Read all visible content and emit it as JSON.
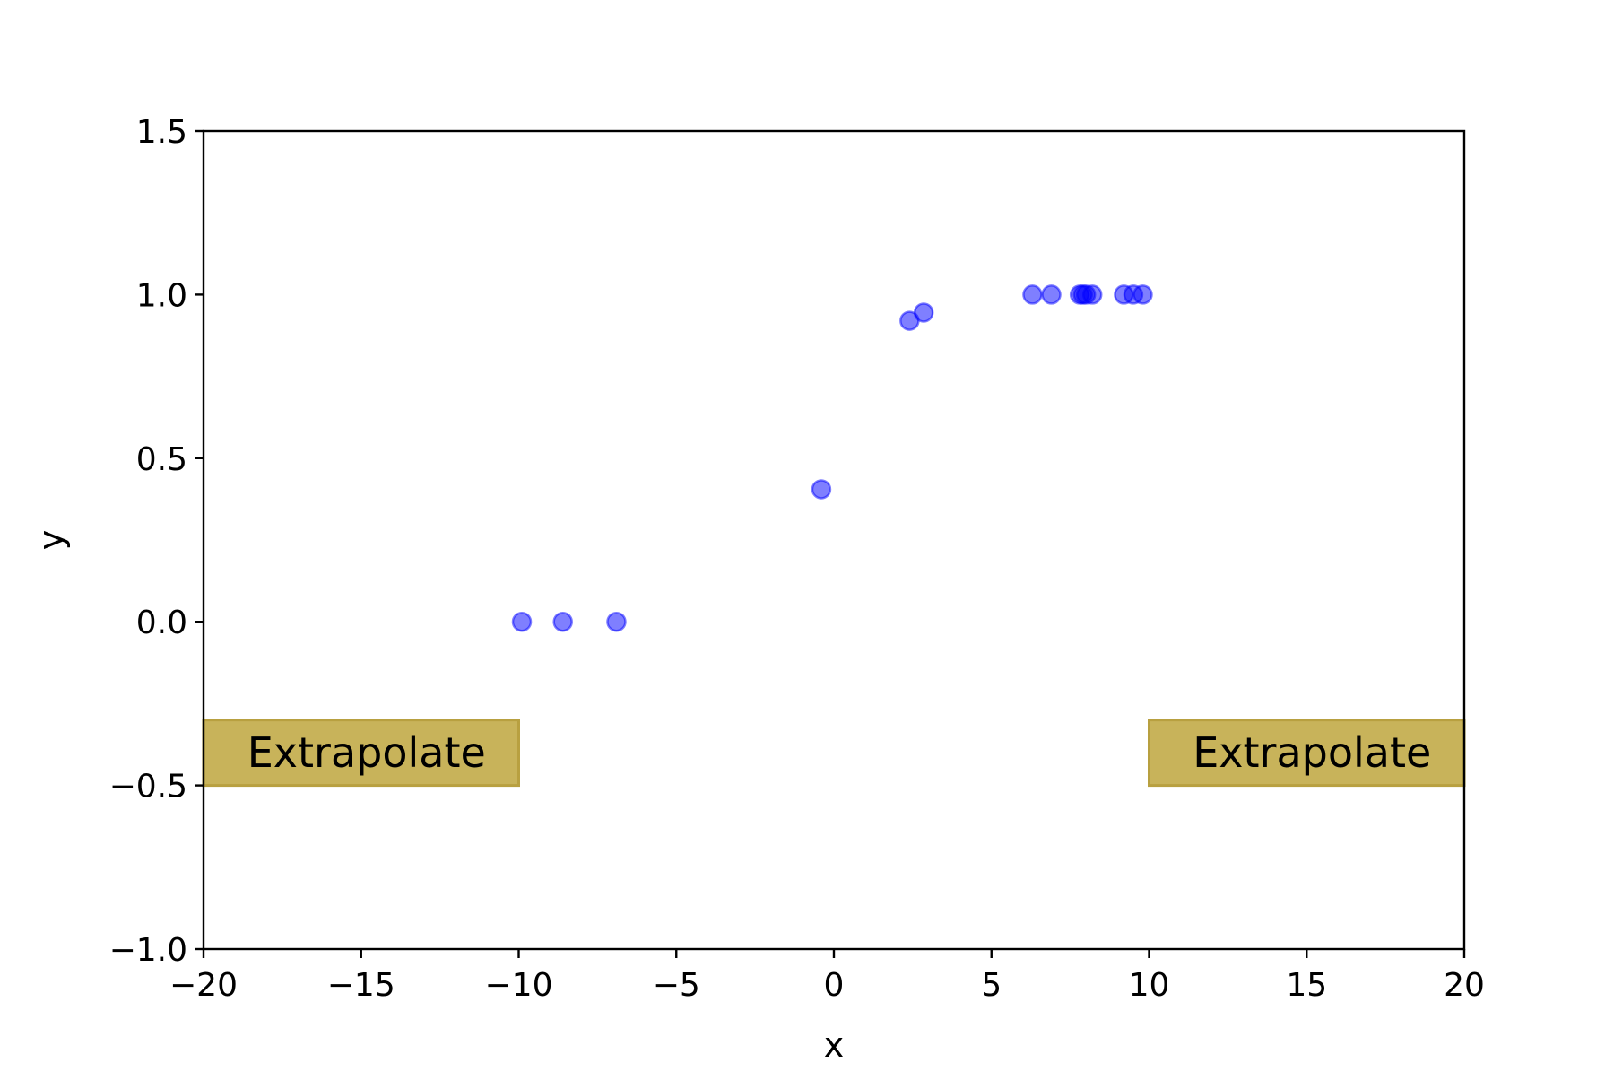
{
  "chart_data": {
    "type": "scatter",
    "title": "",
    "xlabel": "x",
    "ylabel": "y",
    "xlim": [
      -20,
      20
    ],
    "ylim": [
      -1.0,
      1.5
    ],
    "xticks": [
      -20,
      -15,
      -10,
      -5,
      0,
      5,
      10,
      15,
      20
    ],
    "xtick_labels": [
      "−20",
      "−15",
      "−10",
      "−5",
      "0",
      "5",
      "10",
      "15",
      "20"
    ],
    "yticks": [
      -1.0,
      -0.5,
      0.0,
      0.5,
      1.0,
      1.5
    ],
    "ytick_labels": [
      "−1.0",
      "−0.5",
      "0.0",
      "0.5",
      "1.0",
      "1.5"
    ],
    "grid": false,
    "legend": "none",
    "series": [
      {
        "color": "#0000ff",
        "opacity": 0.5,
        "points": [
          {
            "x": -9.9,
            "y": 0.0
          },
          {
            "x": -8.6,
            "y": 0.0
          },
          {
            "x": -6.9,
            "y": 0.0
          },
          {
            "x": -0.4,
            "y": 0.405
          },
          {
            "x": 2.4,
            "y": 0.92
          },
          {
            "x": 2.85,
            "y": 0.945
          },
          {
            "x": 6.3,
            "y": 1.0
          },
          {
            "x": 6.9,
            "y": 1.0
          },
          {
            "x": 7.8,
            "y": 1.0
          },
          {
            "x": 7.9,
            "y": 1.0
          },
          {
            "x": 8.0,
            "y": 1.0
          },
          {
            "x": 8.2,
            "y": 1.0
          },
          {
            "x": 9.2,
            "y": 1.0
          },
          {
            "x": 9.5,
            "y": 1.0
          },
          {
            "x": 9.8,
            "y": 1.0
          }
        ]
      }
    ],
    "annotations": [
      {
        "text": "Extrapolate",
        "x_range": [
          -20,
          -10
        ],
        "y_range": [
          -0.5,
          -0.3
        ],
        "color": "#c8b35a"
      },
      {
        "text": "Extrapolate",
        "x_range": [
          10,
          20
        ],
        "y_range": [
          -0.5,
          -0.3
        ],
        "color": "#c8b35a"
      }
    ]
  }
}
